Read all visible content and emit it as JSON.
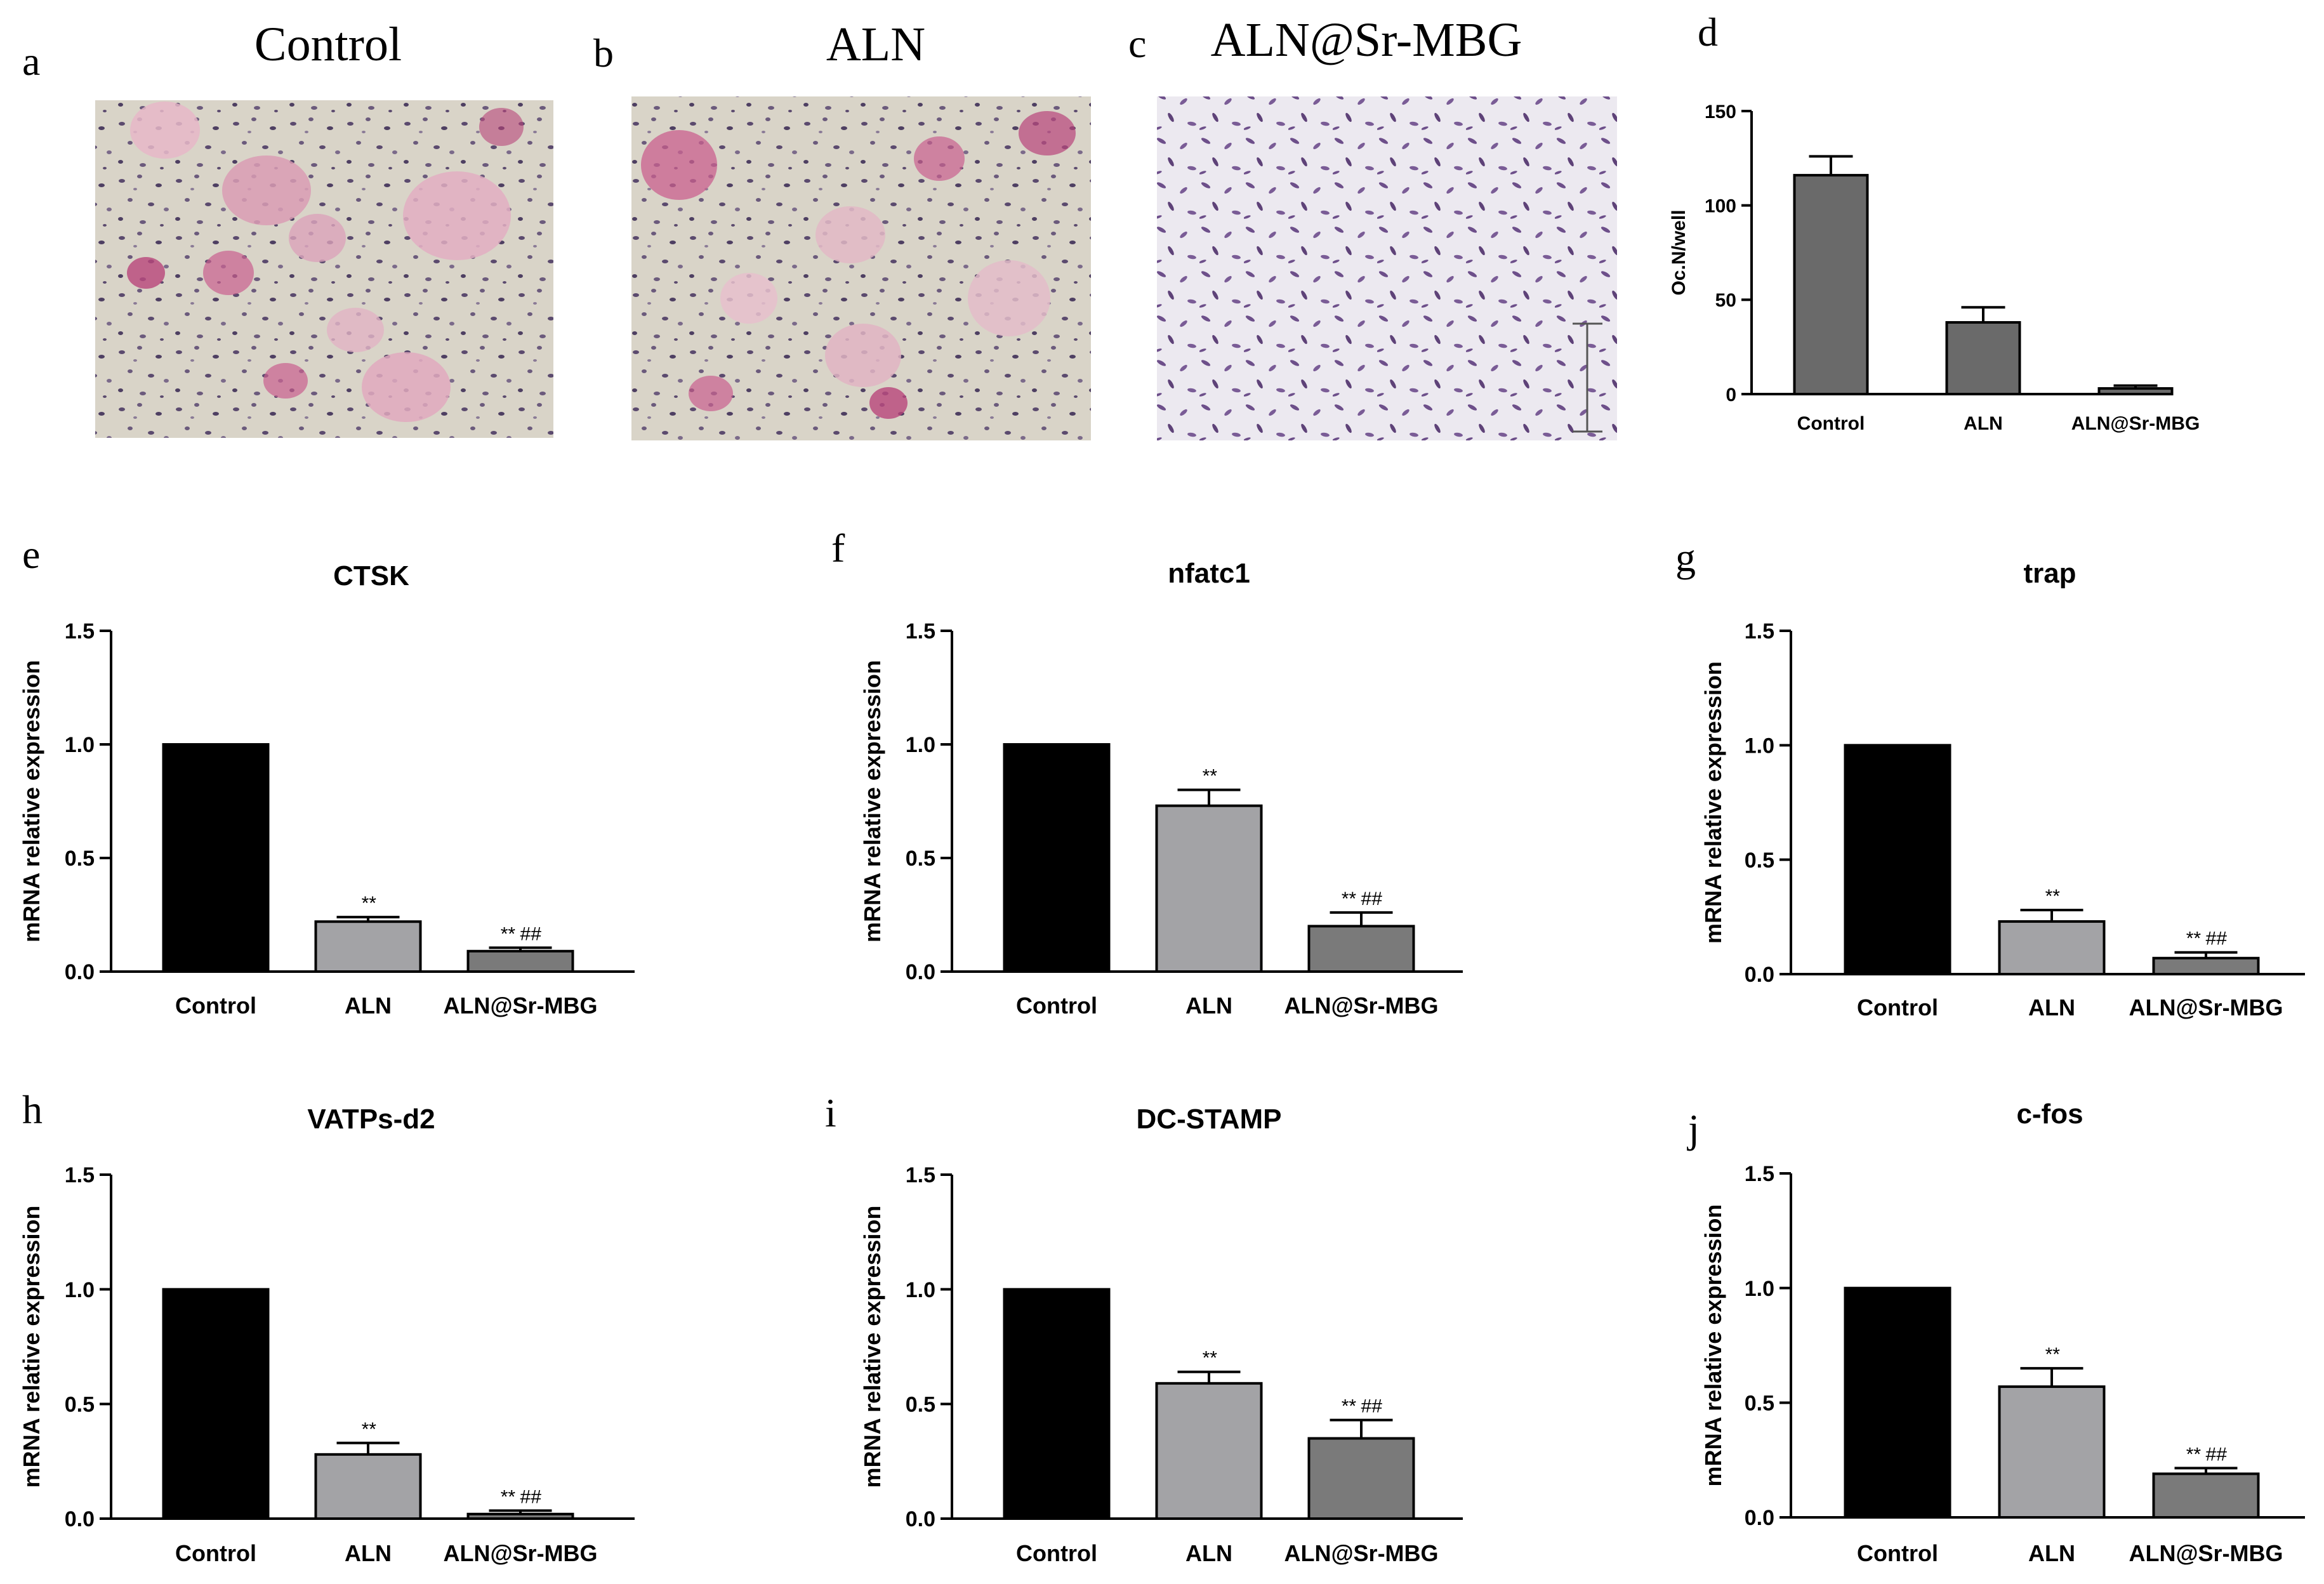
{
  "panels": [
    {
      "letter": "a",
      "title": "Control"
    },
    {
      "letter": "b",
      "title": "ALN"
    },
    {
      "letter": "c",
      "title": "ALN@Sr-MBG"
    }
  ],
  "chart_data": [
    {
      "letter": "d",
      "type": "bar",
      "title": "",
      "categories": [
        "Control",
        "ALN",
        "ALN@Sr-MBG"
      ],
      "values": [
        116,
        38,
        3
      ],
      "errors": [
        10,
        8,
        1.5
      ],
      "ylabel": "Oc.N/well",
      "ylim": [
        0,
        150
      ],
      "yticks": [
        0,
        50,
        100,
        150
      ],
      "colors": [
        "#6a6a6a",
        "#6a6a6a",
        "#6a6a6a"
      ],
      "annotations": [
        "",
        "",
        ""
      ]
    },
    {
      "letter": "e",
      "type": "bar",
      "title": "CTSK",
      "categories": [
        "Control",
        "ALN",
        "ALN@Sr-MBG"
      ],
      "values": [
        1.0,
        0.22,
        0.09
      ],
      "errors": [
        0,
        0.02,
        0.015
      ],
      "ylabel": "mRNA relative expression",
      "ylim": [
        0,
        1.5
      ],
      "yticks": [
        "0.0",
        "0.5",
        "1.0",
        "1.5"
      ],
      "colors": [
        "#000000",
        "#a3a3a6",
        "#7a7a7a"
      ],
      "annotations": [
        "",
        "**",
        "** ##"
      ]
    },
    {
      "letter": "f",
      "type": "bar",
      "title": "nfatc1",
      "categories": [
        "Control",
        "ALN",
        "ALN@Sr-MBG"
      ],
      "values": [
        1.0,
        0.73,
        0.2
      ],
      "errors": [
        0,
        0.07,
        0.06
      ],
      "ylabel": "mRNA relative expression",
      "ylim": [
        0,
        1.5
      ],
      "yticks": [
        "0.0",
        "0.5",
        "1.0",
        "1.5"
      ],
      "colors": [
        "#000000",
        "#a3a3a6",
        "#7a7a7a"
      ],
      "annotations": [
        "",
        "**",
        "** ##"
      ]
    },
    {
      "letter": "g",
      "type": "bar",
      "title": "trap",
      "categories": [
        "Control",
        "ALN",
        "ALN@Sr-MBG"
      ],
      "values": [
        1.0,
        0.23,
        0.07
      ],
      "errors": [
        0,
        0.05,
        0.025
      ],
      "ylabel": "mRNA relative expression",
      "ylim": [
        0,
        1.5
      ],
      "yticks": [
        "0.0",
        "0.5",
        "1.0",
        "1.5"
      ],
      "colors": [
        "#000000",
        "#a3a3a6",
        "#7a7a7a"
      ],
      "annotations": [
        "",
        "**",
        "** ##"
      ]
    },
    {
      "letter": "h",
      "type": "bar",
      "title": "VATPs-d2",
      "categories": [
        "Control",
        "ALN",
        "ALN@Sr-MBG"
      ],
      "values": [
        1.0,
        0.28,
        0.02
      ],
      "errors": [
        0,
        0.05,
        0.015
      ],
      "ylabel": "mRNA relative expression",
      "ylim": [
        0,
        1.5
      ],
      "yticks": [
        "0.0",
        "0.5",
        "1.0",
        "1.5"
      ],
      "colors": [
        "#000000",
        "#a3a3a6",
        "#7a7a7a"
      ],
      "annotations": [
        "",
        "**",
        "** ##"
      ]
    },
    {
      "letter": "i",
      "type": "bar",
      "title": "DC-STAMP",
      "categories": [
        "Control",
        "ALN",
        "ALN@Sr-MBG"
      ],
      "values": [
        1.0,
        0.59,
        0.35
      ],
      "errors": [
        0,
        0.05,
        0.08
      ],
      "ylabel": "mRNA relative expression",
      "ylim": [
        0,
        1.5
      ],
      "yticks": [
        "0.0",
        "0.5",
        "1.0",
        "1.5"
      ],
      "colors": [
        "#000000",
        "#a3a3a6",
        "#7a7a7a"
      ],
      "annotations": [
        "",
        "**",
        "** ##"
      ]
    },
    {
      "letter": "j",
      "type": "bar",
      "title": "c-fos",
      "categories": [
        "Control",
        "ALN",
        "ALN@Sr-MBG"
      ],
      "values": [
        1.0,
        0.57,
        0.19
      ],
      "errors": [
        0,
        0.08,
        0.025
      ],
      "ylabel": "mRNA relative expression",
      "ylim": [
        0,
        1.5
      ],
      "yticks": [
        "0.0",
        "0.5",
        "1.0",
        "1.5"
      ],
      "colors": [
        "#000000",
        "#a3a3a6",
        "#7a7a7a"
      ],
      "annotations": [
        "",
        "**",
        "** ##"
      ]
    }
  ]
}
